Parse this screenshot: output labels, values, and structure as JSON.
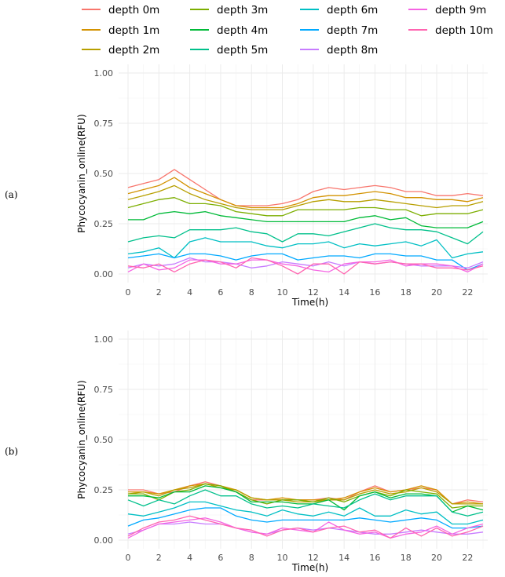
{
  "legend": {
    "entries": [
      {
        "label": "depth 0m",
        "color": "#F8766D"
      },
      {
        "label": "depth 1m",
        "color": "#D39200"
      },
      {
        "label": "depth 2m",
        "color": "#B79F00"
      },
      {
        "label": "depth 3m",
        "color": "#7CAE00"
      },
      {
        "label": "depth 4m",
        "color": "#00BA38"
      },
      {
        "label": "depth 5m",
        "color": "#00C08B"
      },
      {
        "label": "depth 6m",
        "color": "#00BFC4"
      },
      {
        "label": "depth 7m",
        "color": "#00A9FF"
      },
      {
        "label": "depth 8m",
        "color": "#C77CFF"
      },
      {
        "label": "depth 9m",
        "color": "#F564E3"
      },
      {
        "label": "depth 10m",
        "color": "#FF64B0"
      }
    ]
  },
  "chart_data": [
    {
      "panel_label": "(a)",
      "type": "line",
      "xlabel": "Time(h)",
      "ylabel": "Phycocyanin_online(RFU)",
      "xlim": [
        0,
        23
      ],
      "ylim": [
        0,
        1
      ],
      "xticks": [
        "0",
        "2",
        "4",
        "6",
        "8",
        "10",
        "12",
        "14",
        "16",
        "18",
        "20",
        "22"
      ],
      "yticks": [
        "0.00",
        "0.25",
        "0.50",
        "0.75",
        "1.00"
      ],
      "grid": true,
      "x": [
        0,
        1,
        2,
        3,
        4,
        5,
        6,
        7,
        8,
        9,
        10,
        11,
        12,
        13,
        14,
        15,
        16,
        17,
        18,
        19,
        20,
        21,
        22,
        23
      ],
      "series": [
        {
          "name": "depth 0m",
          "values": [
            0.43,
            0.45,
            0.47,
            0.52,
            0.47,
            0.42,
            0.37,
            0.34,
            0.34,
            0.34,
            0.35,
            0.37,
            0.41,
            0.43,
            0.42,
            0.43,
            0.44,
            0.43,
            0.41,
            0.41,
            0.39,
            0.39,
            0.4,
            0.39
          ]
        },
        {
          "name": "depth 1m",
          "values": [
            0.4,
            0.42,
            0.44,
            0.48,
            0.43,
            0.4,
            0.37,
            0.34,
            0.33,
            0.33,
            0.33,
            0.35,
            0.38,
            0.39,
            0.39,
            0.4,
            0.41,
            0.4,
            0.38,
            0.38,
            0.37,
            0.37,
            0.36,
            0.38
          ]
        },
        {
          "name": "depth 2m",
          "values": [
            0.37,
            0.39,
            0.41,
            0.44,
            0.4,
            0.37,
            0.35,
            0.33,
            0.32,
            0.32,
            0.32,
            0.34,
            0.36,
            0.37,
            0.36,
            0.36,
            0.37,
            0.36,
            0.35,
            0.34,
            0.33,
            0.34,
            0.34,
            0.36
          ]
        },
        {
          "name": "depth 3m",
          "values": [
            0.33,
            0.35,
            0.37,
            0.38,
            0.35,
            0.35,
            0.34,
            0.31,
            0.3,
            0.29,
            0.29,
            0.32,
            0.32,
            0.32,
            0.32,
            0.33,
            0.33,
            0.32,
            0.32,
            0.29,
            0.3,
            0.3,
            0.3,
            0.32
          ]
        },
        {
          "name": "depth 4m",
          "values": [
            0.27,
            0.27,
            0.3,
            0.31,
            0.3,
            0.31,
            0.29,
            0.28,
            0.27,
            0.26,
            0.26,
            0.26,
            0.26,
            0.26,
            0.26,
            0.28,
            0.29,
            0.27,
            0.28,
            0.24,
            0.23,
            0.23,
            0.23,
            0.26
          ]
        },
        {
          "name": "depth 5m",
          "values": [
            0.16,
            0.18,
            0.19,
            0.18,
            0.22,
            0.22,
            0.22,
            0.23,
            0.21,
            0.2,
            0.16,
            0.2,
            0.2,
            0.19,
            0.21,
            0.23,
            0.25,
            0.23,
            0.22,
            0.22,
            0.21,
            0.18,
            0.15,
            0.21
          ]
        },
        {
          "name": "depth 6m",
          "values": [
            0.1,
            0.11,
            0.13,
            0.08,
            0.16,
            0.18,
            0.16,
            0.16,
            0.16,
            0.14,
            0.13,
            0.15,
            0.15,
            0.16,
            0.13,
            0.15,
            0.14,
            0.15,
            0.16,
            0.14,
            0.17,
            0.08,
            0.1,
            0.11
          ]
        },
        {
          "name": "depth 7m",
          "values": [
            0.08,
            0.09,
            0.1,
            0.08,
            0.1,
            0.1,
            0.09,
            0.07,
            0.09,
            0.1,
            0.1,
            0.07,
            0.08,
            0.09,
            0.09,
            0.08,
            0.1,
            0.1,
            0.09,
            0.09,
            0.07,
            0.07,
            0.02,
            0.05
          ]
        },
        {
          "name": "depth 8m",
          "values": [
            0.03,
            0.05,
            0.04,
            0.05,
            0.08,
            0.06,
            0.06,
            0.05,
            0.03,
            0.04,
            0.06,
            0.05,
            0.04,
            0.06,
            0.04,
            0.06,
            0.05,
            0.06,
            0.05,
            0.04,
            0.04,
            0.04,
            0.03,
            0.06
          ]
        },
        {
          "name": "depth 9m",
          "values": [
            0.01,
            0.05,
            0.02,
            0.03,
            0.07,
            0.07,
            0.05,
            0.05,
            0.07,
            0.07,
            0.05,
            0.04,
            0.02,
            0.01,
            0.05,
            0.06,
            0.06,
            0.07,
            0.04,
            0.05,
            0.05,
            0.04,
            0.01,
            0.05
          ]
        },
        {
          "name": "depth 10m",
          "values": [
            0.04,
            0.03,
            0.05,
            0.01,
            0.05,
            0.07,
            0.06,
            0.03,
            0.08,
            0.07,
            0.04,
            0.0,
            0.05,
            0.05,
            0.0,
            0.06,
            0.05,
            0.06,
            0.05,
            0.05,
            0.03,
            0.03,
            0.02,
            0.04
          ]
        }
      ]
    },
    {
      "panel_label": "(b)",
      "type": "line",
      "xlabel": "Time(h)",
      "ylabel": "Phycocyanin_online(RFU)",
      "xlim": [
        0,
        23
      ],
      "ylim": [
        0,
        1
      ],
      "xticks": [
        "0",
        "2",
        "4",
        "6",
        "8",
        "10",
        "12",
        "14",
        "16",
        "18",
        "20",
        "22"
      ],
      "yticks": [
        "0.00",
        "0.25",
        "0.50",
        "0.75",
        "1.00"
      ],
      "grid": true,
      "x": [
        0,
        1,
        2,
        3,
        4,
        5,
        6,
        7,
        8,
        9,
        10,
        11,
        12,
        13,
        14,
        15,
        16,
        17,
        18,
        19,
        20,
        21,
        22,
        23
      ],
      "series": [
        {
          "name": "depth 0m",
          "values": [
            0.25,
            0.25,
            0.23,
            0.24,
            0.27,
            0.29,
            0.27,
            0.24,
            0.2,
            0.2,
            0.2,
            0.2,
            0.2,
            0.21,
            0.2,
            0.24,
            0.27,
            0.24,
            0.25,
            0.26,
            0.25,
            0.18,
            0.2,
            0.19
          ]
        },
        {
          "name": "depth 1m",
          "values": [
            0.24,
            0.24,
            0.23,
            0.25,
            0.27,
            0.28,
            0.27,
            0.25,
            0.21,
            0.2,
            0.21,
            0.2,
            0.2,
            0.2,
            0.21,
            0.24,
            0.26,
            0.24,
            0.25,
            0.27,
            0.25,
            0.18,
            0.19,
            0.18
          ]
        },
        {
          "name": "depth 2m",
          "values": [
            0.23,
            0.24,
            0.22,
            0.25,
            0.26,
            0.28,
            0.26,
            0.25,
            0.21,
            0.2,
            0.2,
            0.19,
            0.19,
            0.2,
            0.2,
            0.23,
            0.25,
            0.23,
            0.24,
            0.26,
            0.24,
            0.18,
            0.18,
            0.18
          ]
        },
        {
          "name": "depth 3m",
          "values": [
            0.23,
            0.23,
            0.2,
            0.24,
            0.25,
            0.28,
            0.27,
            0.24,
            0.2,
            0.18,
            0.2,
            0.2,
            0.19,
            0.21,
            0.19,
            0.22,
            0.24,
            0.22,
            0.25,
            0.24,
            0.23,
            0.16,
            0.17,
            0.17
          ]
        },
        {
          "name": "depth 4m",
          "values": [
            0.22,
            0.22,
            0.21,
            0.24,
            0.24,
            0.27,
            0.26,
            0.24,
            0.19,
            0.19,
            0.19,
            0.18,
            0.18,
            0.2,
            0.15,
            0.22,
            0.24,
            0.21,
            0.23,
            0.23,
            0.22,
            0.14,
            0.17,
            0.15
          ]
        },
        {
          "name": "depth 5m",
          "values": [
            0.2,
            0.17,
            0.2,
            0.18,
            0.22,
            0.25,
            0.22,
            0.22,
            0.18,
            0.16,
            0.17,
            0.16,
            0.18,
            0.17,
            0.16,
            0.2,
            0.23,
            0.2,
            0.22,
            0.22,
            0.22,
            0.14,
            0.12,
            0.14
          ]
        },
        {
          "name": "depth 6m",
          "values": [
            0.13,
            0.12,
            0.14,
            0.16,
            0.19,
            0.19,
            0.17,
            0.15,
            0.14,
            0.12,
            0.15,
            0.13,
            0.12,
            0.14,
            0.12,
            0.16,
            0.12,
            0.12,
            0.15,
            0.13,
            0.14,
            0.08,
            0.08,
            0.1
          ]
        },
        {
          "name": "depth 7m",
          "values": [
            0.07,
            0.1,
            0.11,
            0.13,
            0.15,
            0.16,
            0.16,
            0.12,
            0.1,
            0.09,
            0.1,
            0.1,
            0.1,
            0.1,
            0.1,
            0.11,
            0.1,
            0.09,
            0.1,
            0.11,
            0.1,
            0.06,
            0.06,
            0.07
          ]
        },
        {
          "name": "depth 8m",
          "values": [
            0.03,
            0.05,
            0.08,
            0.08,
            0.09,
            0.08,
            0.08,
            0.06,
            0.04,
            0.03,
            0.05,
            0.06,
            0.05,
            0.06,
            0.05,
            0.04,
            0.03,
            0.03,
            0.04,
            0.05,
            0.04,
            0.03,
            0.03,
            0.04
          ]
        },
        {
          "name": "depth 9m",
          "values": [
            0.01,
            0.05,
            0.08,
            0.09,
            0.1,
            0.11,
            0.09,
            0.06,
            0.04,
            0.03,
            0.06,
            0.05,
            0.04,
            0.09,
            0.05,
            0.03,
            0.04,
            0.01,
            0.03,
            0.04,
            0.07,
            0.03,
            0.06,
            0.08
          ]
        },
        {
          "name": "depth 10m",
          "values": [
            0.02,
            0.06,
            0.09,
            0.1,
            0.12,
            0.1,
            0.08,
            0.06,
            0.05,
            0.02,
            0.05,
            0.06,
            0.04,
            0.06,
            0.07,
            0.04,
            0.05,
            0.01,
            0.06,
            0.02,
            0.06,
            0.02,
            0.04,
            0.07
          ]
        }
      ]
    }
  ]
}
